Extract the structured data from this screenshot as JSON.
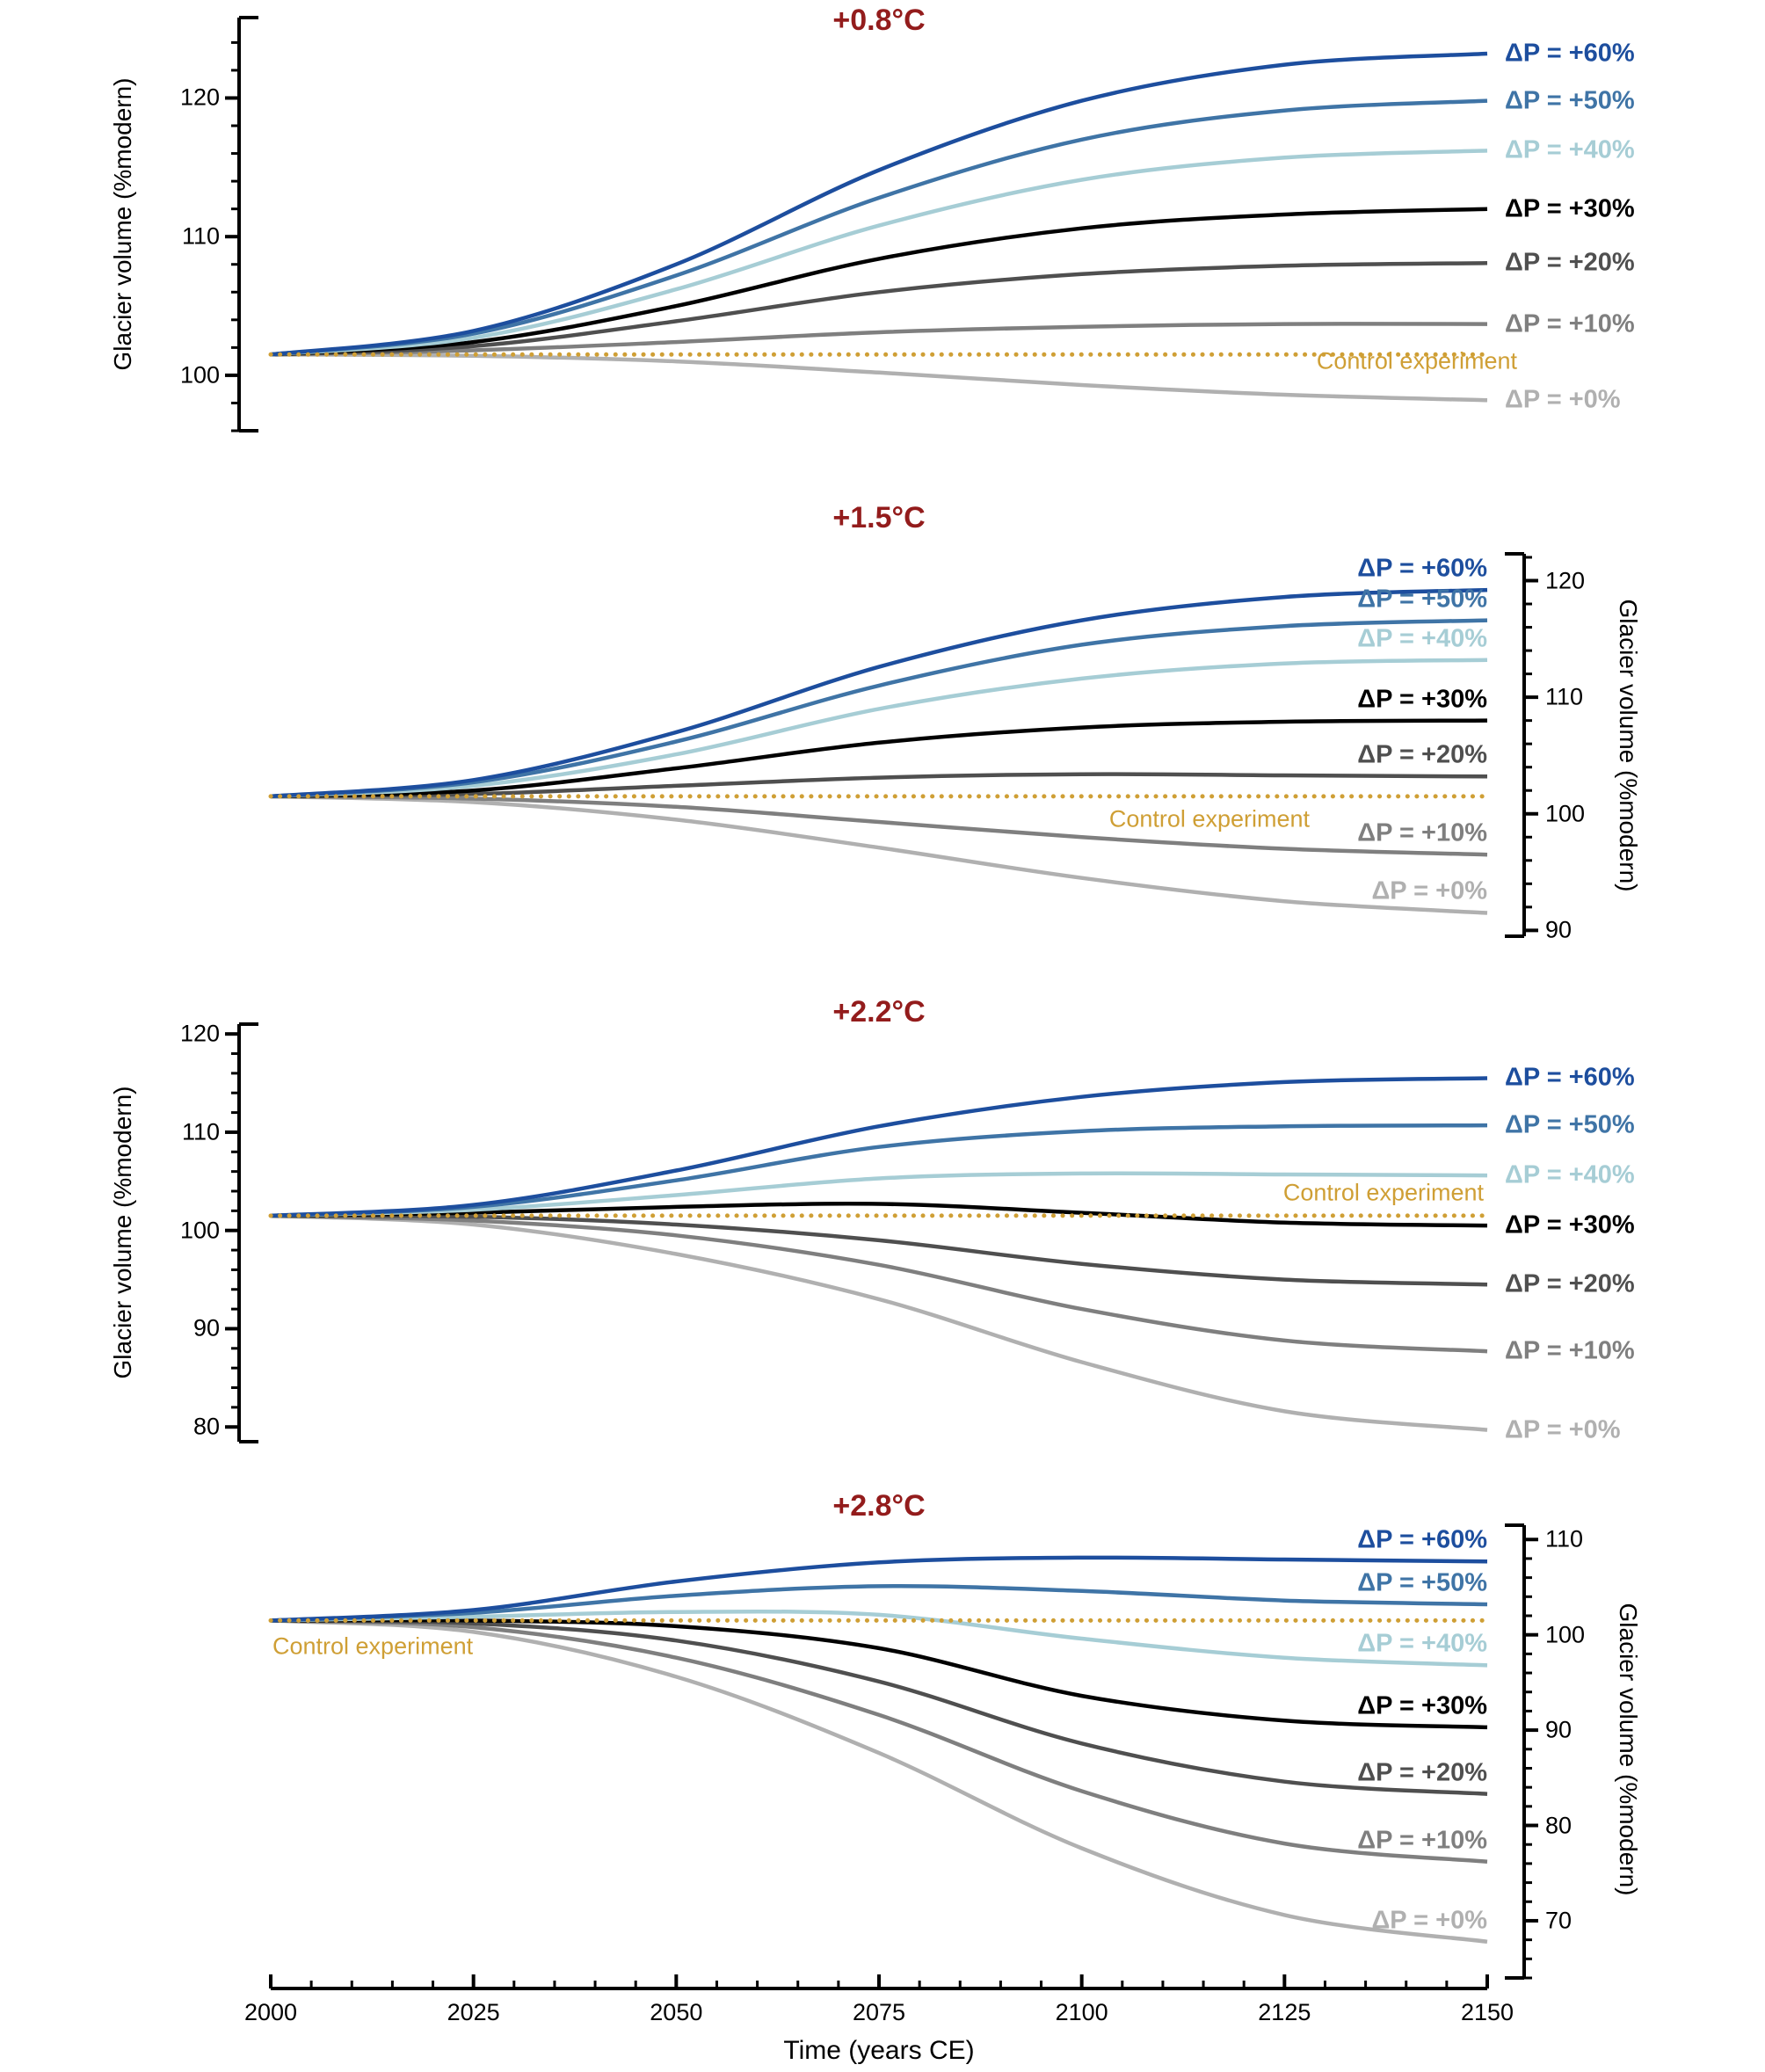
{
  "title_color": "#931c1c",
  "x_axis": {
    "label": "Time (years CE)",
    "range": [
      2000,
      2150
    ],
    "ticks": [
      2000,
      2025,
      2050,
      2075,
      2100,
      2125,
      2150
    ],
    "minor_step": 5
  },
  "chart_data": [
    {
      "type": "line",
      "title": "+0.8°C",
      "ylabel": "Glacier volume (%modern)",
      "axis_side": "left",
      "ylim": [
        96,
        125.8
      ],
      "yticks": [
        100,
        110,
        120
      ],
      "y_minor_step": 2,
      "x": [
        2000,
        2025,
        2050,
        2075,
        2100,
        2125,
        2150
      ],
      "series": [
        {
          "name": "ΔP = +60%",
          "color": "#1d4e9e",
          "values": [
            101.5,
            103.2,
            108.0,
            114.8,
            119.8,
            122.4,
            123.2
          ]
        },
        {
          "name": "ΔP = +50%",
          "color": "#3f74a6",
          "values": [
            101.5,
            103.0,
            107.2,
            112.8,
            117.0,
            119.1,
            119.8
          ]
        },
        {
          "name": "ΔP = +40%",
          "color": "#a6cdd5",
          "values": [
            101.5,
            102.7,
            106.2,
            110.8,
            114.1,
            115.7,
            116.2
          ]
        },
        {
          "name": "ΔP = +30%",
          "color": "#000000",
          "values": [
            101.5,
            102.4,
            105.0,
            108.4,
            110.6,
            111.6,
            112.0
          ]
        },
        {
          "name": "ΔP = +20%",
          "color": "#4f4f4f",
          "values": [
            101.5,
            102.1,
            103.9,
            106.0,
            107.3,
            107.9,
            108.1
          ]
        },
        {
          "name": "ΔP = +10%",
          "color": "#7f7f7f",
          "values": [
            101.5,
            101.8,
            102.4,
            103.1,
            103.5,
            103.7,
            103.7
          ]
        },
        {
          "name": "ΔP = +0%",
          "color": "#b0b0b0",
          "values": [
            101.5,
            101.4,
            101.0,
            100.2,
            99.3,
            98.6,
            98.2
          ]
        }
      ],
      "control": {
        "name": "Control experiment",
        "color": "#cf9f35",
        "style": "dotted",
        "values": [
          101.5,
          101.5,
          101.5,
          101.5,
          101.5,
          101.5,
          101.5
        ]
      }
    },
    {
      "type": "line",
      "title": "+1.5°C",
      "ylabel": "Glacier volume (%modern)",
      "axis_side": "right",
      "ylim": [
        89.5,
        122.3
      ],
      "yticks": [
        90,
        100,
        110,
        120
      ],
      "y_minor_step": 2,
      "x": [
        2000,
        2025,
        2050,
        2075,
        2100,
        2125,
        2150
      ],
      "series": [
        {
          "name": "ΔP = +60%",
          "color": "#1d4e9e",
          "values": [
            101.5,
            102.9,
            107.0,
            112.6,
            116.6,
            118.6,
            119.2
          ]
        },
        {
          "name": "ΔP = +50%",
          "color": "#3f74a6",
          "values": [
            101.5,
            102.7,
            106.2,
            111.0,
            114.5,
            116.1,
            116.6
          ]
        },
        {
          "name": "ΔP = +40%",
          "color": "#a6cdd5",
          "values": [
            101.5,
            102.4,
            105.1,
            109.0,
            111.6,
            112.9,
            113.2
          ]
        },
        {
          "name": "ΔP = +30%",
          "color": "#000000",
          "values": [
            101.5,
            102.0,
            103.9,
            106.1,
            107.4,
            107.9,
            108.0
          ]
        },
        {
          "name": "ΔP = +20%",
          "color": "#4f4f4f",
          "values": [
            101.5,
            101.7,
            102.4,
            103.1,
            103.4,
            103.3,
            103.2
          ]
        },
        {
          "name": "ΔP = +10%",
          "color": "#7f7f7f",
          "values": [
            101.5,
            101.3,
            100.6,
            99.3,
            98.0,
            97.0,
            96.5
          ]
        },
        {
          "name": "ΔP = +0%",
          "color": "#b0b0b0",
          "values": [
            101.5,
            101.0,
            99.5,
            97.1,
            94.5,
            92.5,
            91.5
          ]
        }
      ],
      "control": {
        "name": "Control experiment",
        "color": "#cf9f35",
        "style": "dotted",
        "values": [
          101.5,
          101.5,
          101.5,
          101.5,
          101.5,
          101.5,
          101.5
        ]
      }
    },
    {
      "type": "line",
      "title": "+2.2°C",
      "ylabel": "Glacier volume (%modern)",
      "axis_side": "left",
      "ylim": [
        78.5,
        121
      ],
      "yticks": [
        80,
        90,
        100,
        110,
        120
      ],
      "y_minor_step": 2,
      "x": [
        2000,
        2025,
        2050,
        2075,
        2100,
        2125,
        2150
      ],
      "series": [
        {
          "name": "ΔP = +60%",
          "color": "#1d4e9e",
          "values": [
            101.5,
            102.6,
            106.1,
            110.6,
            113.6,
            115.1,
            115.5
          ]
        },
        {
          "name": "ΔP = +50%",
          "color": "#3f74a6",
          "values": [
            101.5,
            102.4,
            105.1,
            108.5,
            110.1,
            110.6,
            110.7
          ]
        },
        {
          "name": "ΔP = +40%",
          "color": "#a6cdd5",
          "values": [
            101.5,
            102.1,
            103.6,
            105.3,
            105.8,
            105.7,
            105.6
          ]
        },
        {
          "name": "ΔP = +30%",
          "color": "#000000",
          "values": [
            101.5,
            101.8,
            102.4,
            102.7,
            101.8,
            100.8,
            100.5
          ]
        },
        {
          "name": "ΔP = +20%",
          "color": "#4f4f4f",
          "values": [
            101.5,
            101.4,
            100.6,
            99.0,
            96.6,
            95.0,
            94.5
          ]
        },
        {
          "name": "ΔP = +10%",
          "color": "#7f7f7f",
          "values": [
            101.5,
            101.0,
            99.5,
            96.5,
            92.0,
            88.8,
            87.7
          ]
        },
        {
          "name": "ΔP = +0%",
          "color": "#b0b0b0",
          "values": [
            101.5,
            100.6,
            97.6,
            93.0,
            86.6,
            81.6,
            79.7
          ]
        }
      ],
      "control": {
        "name": "Control experiment",
        "color": "#cf9f35",
        "style": "dotted",
        "values": [
          101.5,
          101.5,
          101.5,
          101.5,
          101.5,
          101.5,
          101.5
        ]
      }
    },
    {
      "type": "line",
      "title": "+2.8°C",
      "ylabel": "Glacier volume (%modern)",
      "axis_side": "right",
      "ylim": [
        64,
        111.5
      ],
      "yticks": [
        70,
        80,
        90,
        100,
        110
      ],
      "y_minor_step": 2,
      "x": [
        2000,
        2025,
        2050,
        2075,
        2100,
        2125,
        2150
      ],
      "series": [
        {
          "name": "ΔP = +60%",
          "color": "#1d4e9e",
          "values": [
            101.5,
            102.6,
            105.6,
            107.6,
            108.1,
            107.9,
            107.7
          ]
        },
        {
          "name": "ΔP = +50%",
          "color": "#3f74a6",
          "values": [
            101.5,
            102.3,
            104.1,
            105.1,
            104.6,
            103.6,
            103.2
          ]
        },
        {
          "name": "ΔP = +40%",
          "color": "#a6cdd5",
          "values": [
            101.5,
            101.9,
            102.4,
            102.1,
            99.6,
            97.6,
            96.8
          ]
        },
        {
          "name": "ΔP = +30%",
          "color": "#000000",
          "values": [
            101.5,
            101.5,
            100.9,
            98.6,
            93.6,
            91.0,
            90.3
          ]
        },
        {
          "name": "ΔP = +20%",
          "color": "#4f4f4f",
          "values": [
            101.5,
            101.2,
            99.4,
            95.1,
            88.6,
            84.6,
            83.3
          ]
        },
        {
          "name": "ΔP = +10%",
          "color": "#7f7f7f",
          "values": [
            101.5,
            100.8,
            97.6,
            91.6,
            83.6,
            78.1,
            76.2
          ]
        },
        {
          "name": "ΔP = +0%",
          "color": "#b0b0b0",
          "values": [
            101.5,
            100.3,
            95.6,
            87.6,
            77.6,
            70.6,
            67.8
          ]
        }
      ],
      "control": {
        "name": "Control experiment",
        "color": "#cf9f35",
        "style": "dotted",
        "values": [
          101.5,
          101.5,
          101.5,
          101.5,
          101.5,
          101.5,
          101.5
        ]
      }
    }
  ]
}
